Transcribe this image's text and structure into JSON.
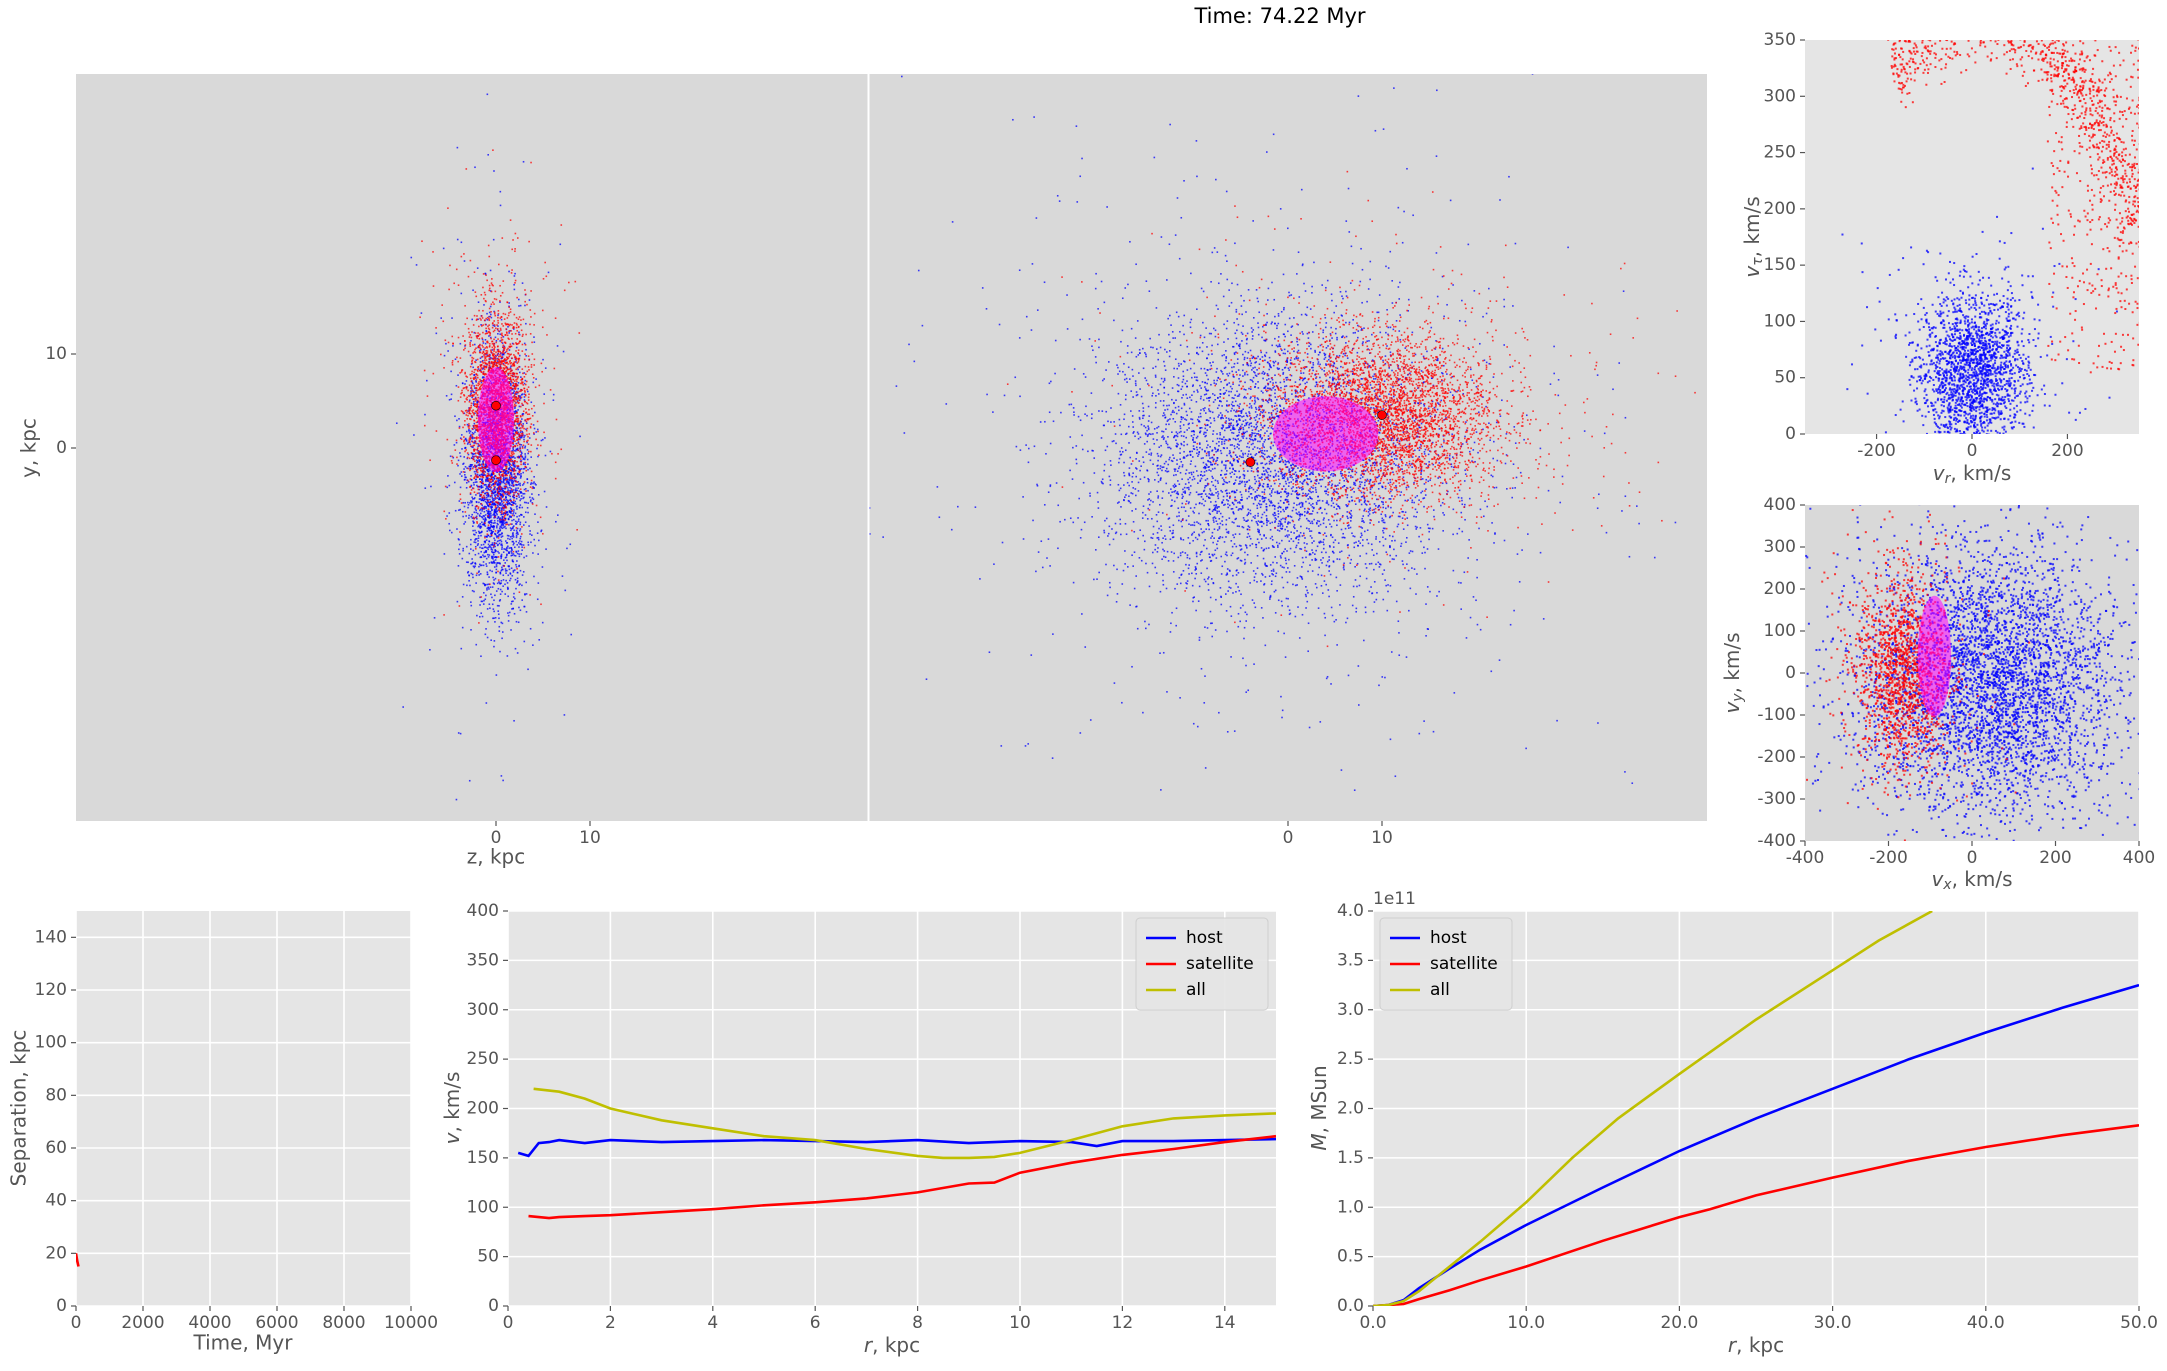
{
  "figure": {
    "title": "Time: 74.22 Myr",
    "colors": {
      "background": "#ffffff",
      "axes_face": "#e5e5e5",
      "scatter_face": "#d9d9d9",
      "grid": "#ffffff",
      "tick_text": "#555555",
      "host": "#0000ff",
      "satellite": "#ff0000",
      "all": "#bfbf00",
      "overlap": "#ff00ff"
    }
  },
  "chart_data": [
    {
      "id": "zy",
      "type": "scatter",
      "xlabel": "z, kpc",
      "ylabel": "y, kpc",
      "xticks": [
        0,
        10
      ],
      "yticks": [
        0,
        10
      ],
      "xlim": [
        -44,
        40
      ],
      "ylim": [
        -40,
        40
      ],
      "grid": false,
      "series": [
        {
          "name": "",
          "color": "#0000ff",
          "center": [
            0,
            -2.5
          ],
          "spread": [
            1.6,
            6.5
          ],
          "count": 3500
        },
        {
          "name": "",
          "color": "#ff0000",
          "center": [
            0,
            4.5
          ],
          "spread": [
            1.6,
            5.0
          ],
          "count": 3000
        }
      ],
      "overlap_blob": {
        "color": "#ff00ff",
        "center": [
          0,
          3
        ],
        "spread": [
          1.2,
          3.5
        ]
      },
      "centers": [
        {
          "x": 0,
          "y": 4.5,
          "color": "#ff0000"
        },
        {
          "x": 0,
          "y": -1.3,
          "color": "#ff0000"
        }
      ]
    },
    {
      "id": "xy",
      "type": "scatter",
      "xlabel": "",
      "ylabel": "",
      "xticks": [
        0,
        10
      ],
      "yticks": [],
      "xlim": [
        -44,
        40
      ],
      "ylim": [
        -40,
        40
      ],
      "grid": false,
      "series": [
        {
          "name": "",
          "color": "#0000ff",
          "center": [
            -1.5,
            -1
          ],
          "spread": [
            9,
            7.5
          ],
          "count": 6000
        },
        {
          "name": "",
          "color": "#ff0000",
          "center": [
            10,
            3.5
          ],
          "spread": [
            6,
            4.2
          ],
          "count": 5000
        }
      ],
      "overlap_blob": {
        "color": "#ff00ff",
        "center": [
          4,
          1.5
        ],
        "spread": [
          3.5,
          2.5
        ]
      },
      "centers": [
        {
          "x": 10,
          "y": 3.5,
          "color": "#ff0000"
        },
        {
          "x": -4,
          "y": -1.5,
          "color": "#ff0000"
        }
      ]
    },
    {
      "id": "vr_vt",
      "type": "scatter",
      "xlabel": "v_r, km/s",
      "ylabel": "v_τ, km/s",
      "xlim": [
        -350,
        350
      ],
      "ylim": [
        0,
        350
      ],
      "xticks": [
        -200,
        0,
        200
      ],
      "yticks": [
        0,
        50,
        100,
        150,
        200,
        250,
        300,
        350
      ],
      "grid": false,
      "series": [
        {
          "name": "",
          "color": "#0000ff",
          "center": [
            0,
            55
          ],
          "spread": [
            55,
            35
          ],
          "count": 2000
        },
        {
          "name": "",
          "color": "#ff0000",
          "arc": {
            "cx": 20,
            "cy": 0,
            "r": 370
          },
          "count": 1600
        }
      ]
    },
    {
      "id": "vx_vy",
      "type": "scatter",
      "xlabel": "v_x, km/s",
      "ylabel": "v_y, km/s",
      "xlim": [
        -400,
        400
      ],
      "ylim": [
        -400,
        400
      ],
      "xticks": [
        -400,
        -200,
        0,
        200,
        400
      ],
      "yticks": [
        -400,
        -300,
        -200,
        -100,
        0,
        100,
        200,
        300,
        400
      ],
      "grid": false,
      "series": [
        {
          "name": "",
          "color": "#0000ff",
          "center": [
            40,
            -20
          ],
          "spread": [
            150,
            150
          ],
          "count": 4500
        },
        {
          "name": "",
          "color": "#ff0000",
          "center": [
            -170,
            10
          ],
          "spread": [
            55,
            110
          ],
          "count": 1500
        }
      ],
      "overlap_blob": {
        "color": "#ff00ff",
        "center": [
          -90,
          40
        ],
        "spread": [
          25,
          90
        ]
      }
    },
    {
      "id": "separation",
      "type": "line",
      "xlabel": "Time, Myr",
      "ylabel": "Separation, kpc",
      "xlim": [
        0,
        10000
      ],
      "ylim": [
        0,
        150
      ],
      "xticks": [
        0,
        2000,
        4000,
        6000,
        8000,
        10000
      ],
      "yticks": [
        0,
        20,
        40,
        60,
        80,
        100,
        120,
        140
      ],
      "grid": true,
      "series": [
        {
          "name": "",
          "color": "#ff0000",
          "x": [
            0,
            40,
            74.22
          ],
          "y": [
            20,
            17,
            15
          ]
        }
      ]
    },
    {
      "id": "rotation_curve",
      "type": "line",
      "xlabel": "r, kpc",
      "ylabel": "v, km/s",
      "xlim": [
        0,
        15
      ],
      "ylim": [
        0,
        400
      ],
      "xticks": [
        0,
        2,
        4,
        6,
        8,
        10,
        12,
        14
      ],
      "yticks": [
        0,
        50,
        100,
        150,
        200,
        250,
        300,
        350,
        400
      ],
      "grid": true,
      "legend": "top-right",
      "series": [
        {
          "name": "host",
          "color": "#0000ff",
          "x": [
            0.2,
            0.4,
            0.6,
            0.8,
            1,
            1.5,
            2,
            3,
            4,
            5,
            6,
            7,
            8,
            9,
            10,
            11,
            11.5,
            12,
            13,
            14,
            15
          ],
          "y": [
            155,
            152,
            165,
            166,
            168,
            165,
            168,
            166,
            167,
            168,
            167,
            166,
            168,
            165,
            167,
            166,
            162,
            167,
            167,
            168,
            169
          ]
        },
        {
          "name": "satellite",
          "color": "#ff0000",
          "x": [
            0.4,
            0.6,
            0.8,
            1,
            1.5,
            2,
            3,
            4,
            5,
            6,
            7,
            8,
            9,
            9.5,
            10,
            11,
            12,
            13,
            14,
            15
          ],
          "y": [
            91,
            90,
            89,
            90,
            91,
            92,
            95,
            98,
            102,
            105,
            109,
            115,
            124,
            125,
            135,
            145,
            153,
            159,
            166,
            172
          ]
        },
        {
          "name": "all",
          "color": "#bfbf00",
          "x": [
            0.5,
            1,
            1.5,
            2,
            3,
            4,
            5,
            6,
            7,
            8,
            8.5,
            9,
            9.5,
            10,
            11,
            12,
            13,
            14,
            15
          ],
          "y": [
            220,
            217,
            210,
            200,
            188,
            180,
            172,
            168,
            159,
            152,
            150,
            150,
            151,
            155,
            168,
            182,
            190,
            193,
            195
          ]
        }
      ]
    },
    {
      "id": "mass_profile",
      "type": "line",
      "xlabel": "r, kpc",
      "ylabel": "M, MSun",
      "scale_label": "1e11",
      "xlim": [
        0,
        50
      ],
      "ylim": [
        0,
        4.0
      ],
      "xticks": [
        0,
        10,
        20,
        30,
        40,
        50
      ],
      "yticks": [
        0.0,
        0.5,
        1.0,
        1.5,
        2.0,
        2.5,
        3.0,
        3.5,
        4.0
      ],
      "grid": true,
      "legend": "top-left",
      "series": [
        {
          "name": "host",
          "color": "#0000ff",
          "x": [
            0,
            1,
            2,
            3,
            5,
            7,
            10,
            15,
            20,
            25,
            30,
            35,
            40,
            45,
            50
          ],
          "y": [
            0,
            0.01,
            0.06,
            0.18,
            0.38,
            0.57,
            0.82,
            1.2,
            1.57,
            1.9,
            2.2,
            2.5,
            2.77,
            3.02,
            3.25
          ]
        },
        {
          "name": "satellite",
          "color": "#ff0000",
          "x": [
            0,
            2,
            3,
            5,
            7,
            10,
            15,
            20,
            22,
            25,
            30,
            35,
            40,
            45,
            50
          ],
          "y": [
            0,
            0.02,
            0.07,
            0.16,
            0.26,
            0.4,
            0.66,
            0.9,
            0.98,
            1.12,
            1.3,
            1.47,
            1.61,
            1.73,
            1.83
          ]
        },
        {
          "name": "all",
          "color": "#bfbf00",
          "x": [
            0,
            1,
            2,
            3,
            5,
            7,
            10,
            13,
            16,
            20,
            25,
            30,
            33,
            36.5
          ],
          "y": [
            0,
            0.01,
            0.05,
            0.15,
            0.4,
            0.65,
            1.05,
            1.5,
            1.9,
            2.35,
            2.9,
            3.4,
            3.7,
            4.0
          ]
        }
      ]
    }
  ]
}
